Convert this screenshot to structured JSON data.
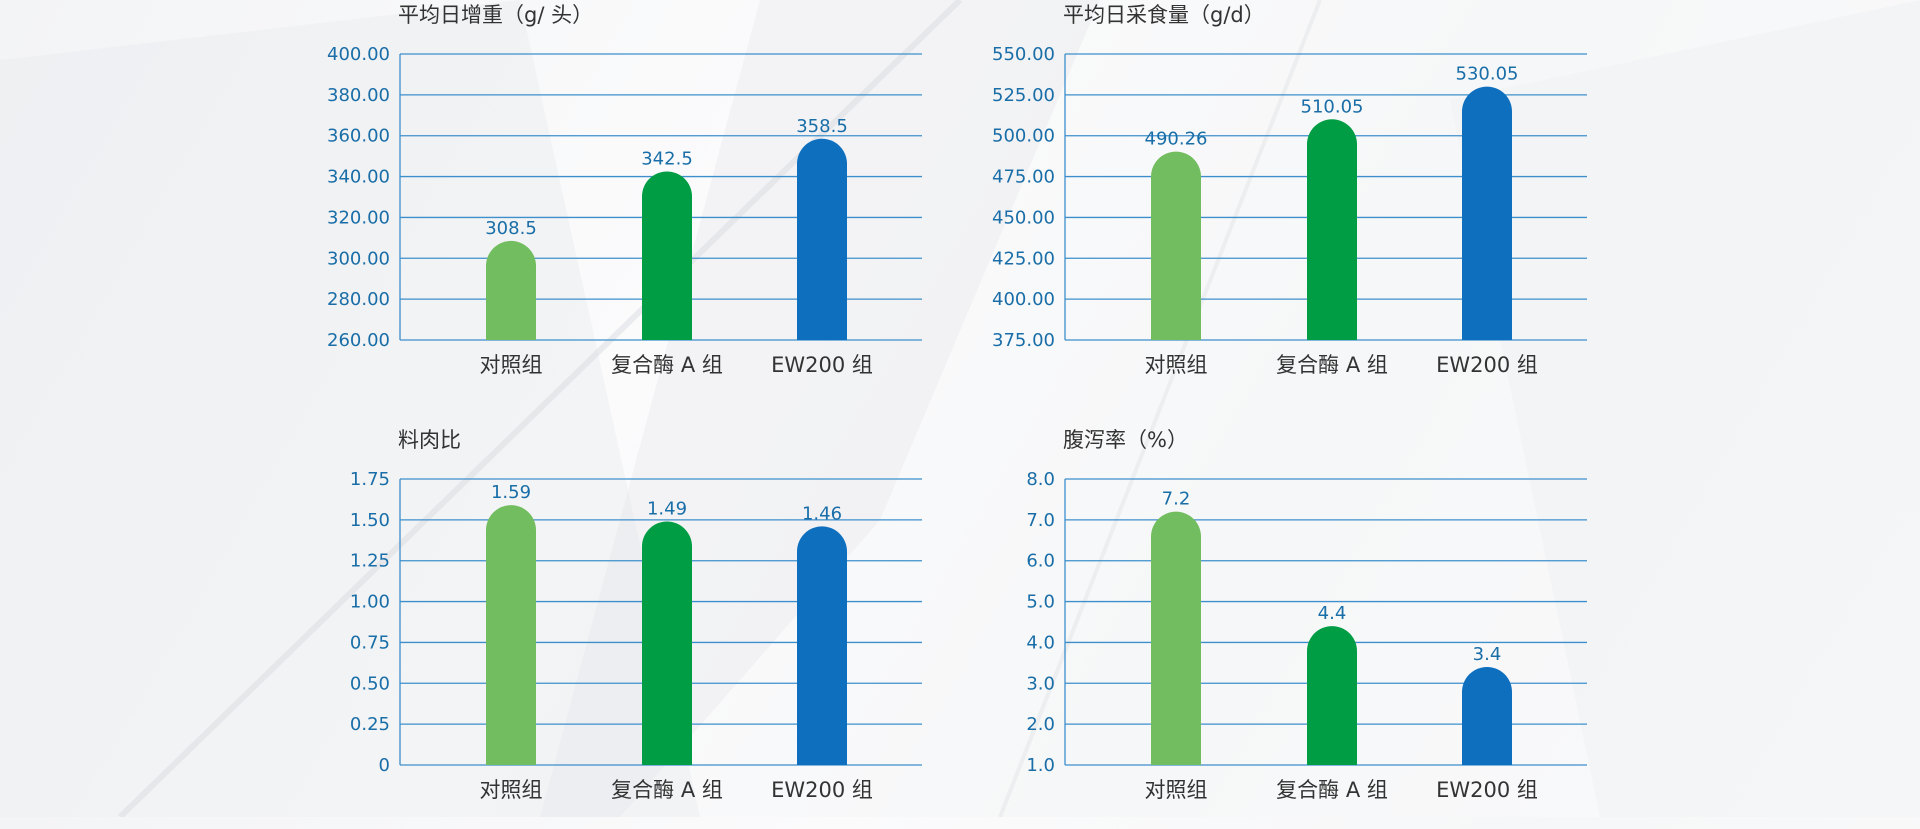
{
  "colors": {
    "control": "#72bd5f",
    "enzyme_a": "#009d45",
    "ew200": "#0e6fbf",
    "grid": "#3d8fcc",
    "tick_text": "#1a6ea8",
    "label_text": "#333333"
  },
  "chart_data": [
    {
      "type": "bar",
      "title": "平均日增重（g/ 头）",
      "categories": [
        "对照组",
        "复合酶 A 组",
        "EW200 组"
      ],
      "values": [
        308.5,
        342.5,
        358.5
      ],
      "value_labels": [
        "308.5",
        "342.5",
        "358.5"
      ],
      "ylim": [
        260,
        400
      ],
      "yticks": [
        "260.00",
        "280.00",
        "300.00",
        "320.00",
        "340.00",
        "360.00",
        "380.00",
        "400.00"
      ],
      "grid": true
    },
    {
      "type": "bar",
      "title": "平均日采食量（g/d）",
      "categories": [
        "对照组",
        "复合酶 A 组",
        "EW200 组"
      ],
      "values": [
        490.26,
        510.05,
        530.05
      ],
      "value_labels": [
        "490.26",
        "510.05",
        "530.05"
      ],
      "ylim": [
        375,
        550
      ],
      "yticks": [
        "375.00",
        "400.00",
        "425.00",
        "450.00",
        "475.00",
        "500.00",
        "525.00",
        "550.00"
      ],
      "grid": true
    },
    {
      "type": "bar",
      "title": "料肉比",
      "categories": [
        "对照组",
        "复合酶 A 组",
        "EW200 组"
      ],
      "values": [
        1.59,
        1.49,
        1.46
      ],
      "value_labels": [
        "1.59",
        "1.49",
        "1.46"
      ],
      "ylim": [
        0,
        1.75
      ],
      "yticks": [
        "0",
        "0.25",
        "0.50",
        "0.75",
        "1.00",
        "1.25",
        "1.50",
        "1.75"
      ],
      "grid": true
    },
    {
      "type": "bar",
      "title": "腹泻率（%）",
      "categories": [
        "对照组",
        "复合酶 A 组",
        "EW200 组"
      ],
      "values": [
        7.2,
        4.4,
        3.4
      ],
      "value_labels": [
        "7.2",
        "4.4",
        "3.4"
      ],
      "ylim": [
        1,
        8
      ],
      "yticks": [
        "1.0",
        "2.0",
        "3.0",
        "4.0",
        "5.0",
        "6.0",
        "7.0",
        "8.0"
      ],
      "grid": true
    }
  ]
}
